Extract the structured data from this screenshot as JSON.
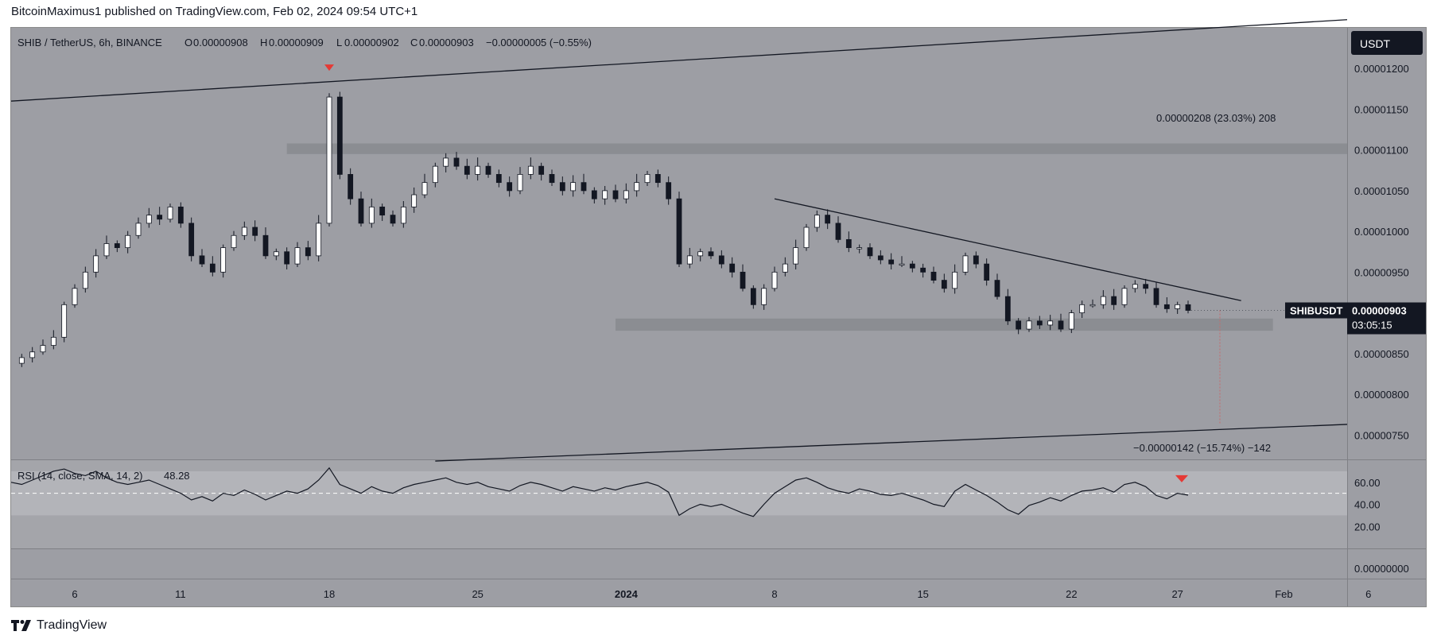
{
  "header": {
    "publisher_text": "BitcoinMaximus1 published on TradingView.com, Feb 02, 2024 09:54 UTC+1"
  },
  "footer": {
    "brand": "TradingView"
  },
  "colors": {
    "pane_bg": "#9d9ea4",
    "axis_bg": "#9d9ea4",
    "bull_candle": "#ffffff",
    "bear_candle": "#131722",
    "marker_red": "#e53935",
    "line": "#131722",
    "zone": "#8a8b90"
  },
  "chart_data": {
    "type": "candlestick",
    "legend": {
      "symbol": "SHIB / TetherUS, 6h, BINANCE",
      "o_label": "O",
      "o_value": "0.00000908",
      "h_label": "H",
      "h_value": "0.00000909",
      "l_label": "L",
      "l_value": "0.00000902",
      "c_label": "C",
      "c_value": "0.00000903",
      "change": "−0.00000005 (−0.55%)"
    },
    "currency_label": "USDT",
    "ylim": [
      7.2e-06,
      1.25e-05
    ],
    "y_ticks": [
      "0.00001200",
      "0.00001150",
      "0.00001100",
      "0.00001050",
      "0.00001000",
      "0.00000950",
      "0.00000900",
      "0.00000850",
      "0.00000800",
      "0.00000750"
    ],
    "y_tick_values": [
      1.2e-05,
      1.15e-05,
      1.1e-05,
      1.05e-05,
      1e-05,
      9.5e-06,
      9e-06,
      8.5e-06,
      8e-06,
      7.5e-06
    ],
    "x_ticks": [
      "6",
      "11",
      "18",
      "25",
      "2024",
      "8",
      "15",
      "22",
      "27",
      "Feb",
      "6"
    ],
    "x_tick_bold": [
      false,
      false,
      false,
      false,
      true,
      false,
      false,
      false,
      false,
      false,
      false
    ],
    "last_price": {
      "symbol": "SHIBUSDT",
      "price": "0.00000903",
      "countdown": "03:05:15",
      "value": 9.03e-06
    },
    "x_range_days": [
      0,
      63
    ],
    "x_tick_days": [
      3,
      8,
      15,
      22,
      29,
      36,
      43,
      50,
      55,
      60,
      64
    ],
    "price_path": [
      [
        0,
        8.38e-06
      ],
      [
        0.5,
        8.45e-06
      ],
      [
        1,
        8.52e-06
      ],
      [
        1.5,
        8.6e-06
      ],
      [
        2,
        8.7e-06
      ],
      [
        2.5,
        9.1e-06
      ],
      [
        3,
        9.3e-06
      ],
      [
        3.5,
        9.5e-06
      ],
      [
        4,
        9.7e-06
      ],
      [
        4.5,
        9.85e-06
      ],
      [
        5,
        9.8e-06
      ],
      [
        5.5,
        9.95e-06
      ],
      [
        6,
        1.01e-05
      ],
      [
        6.5,
        1.02e-05
      ],
      [
        7,
        1.015e-05
      ],
      [
        7.5,
        1.03e-05
      ],
      [
        8,
        1.01e-05
      ],
      [
        8.5,
        9.7e-06
      ],
      [
        9,
        9.6e-06
      ],
      [
        9.5,
        9.5e-06
      ],
      [
        10,
        9.8e-06
      ],
      [
        10.5,
        9.95e-06
      ],
      [
        11,
        1.005e-05
      ],
      [
        11.5,
        9.95e-06
      ],
      [
        12,
        9.7e-06
      ],
      [
        12.5,
        9.75e-06
      ],
      [
        13,
        9.6e-06
      ],
      [
        13.5,
        9.8e-06
      ],
      [
        14,
        9.7e-06
      ],
      [
        14.5,
        1.01e-05
      ],
      [
        15,
        1.165e-05
      ],
      [
        15.5,
        1.07e-05
      ],
      [
        16,
        1.04e-05
      ],
      [
        16.5,
        1.01e-05
      ],
      [
        17,
        1.03e-05
      ],
      [
        17.5,
        1.02e-05
      ],
      [
        18,
        1.01e-05
      ],
      [
        18.5,
        1.03e-05
      ],
      [
        19,
        1.045e-05
      ],
      [
        19.5,
        1.06e-05
      ],
      [
        20,
        1.08e-05
      ],
      [
        20.5,
        1.09e-05
      ],
      [
        21,
        1.08e-05
      ],
      [
        21.5,
        1.07e-05
      ],
      [
        22,
        1.08e-05
      ],
      [
        22.5,
        1.07e-05
      ],
      [
        23,
        1.06e-05
      ],
      [
        23.5,
        1.05e-05
      ],
      [
        24,
        1.07e-05
      ],
      [
        24.5,
        1.08e-05
      ],
      [
        25,
        1.07e-05
      ],
      [
        25.5,
        1.06e-05
      ],
      [
        26,
        1.05e-05
      ],
      [
        26.5,
        1.06e-05
      ],
      [
        27,
        1.05e-05
      ],
      [
        27.5,
        1.04e-05
      ],
      [
        28,
        1.05e-05
      ],
      [
        28.5,
        1.04e-05
      ],
      [
        29,
        1.05e-05
      ],
      [
        29.5,
        1.06e-05
      ],
      [
        30,
        1.07e-05
      ],
      [
        30.5,
        1.06e-05
      ],
      [
        31,
        1.04e-05
      ],
      [
        31.5,
        9.6e-06
      ],
      [
        32,
        9.7e-06
      ],
      [
        32.5,
        9.75e-06
      ],
      [
        33,
        9.7e-06
      ],
      [
        33.5,
        9.6e-06
      ],
      [
        34,
        9.5e-06
      ],
      [
        34.5,
        9.3e-06
      ],
      [
        35,
        9.1e-06
      ],
      [
        35.5,
        9.3e-06
      ],
      [
        36,
        9.5e-06
      ],
      [
        36.5,
        9.6e-06
      ],
      [
        37,
        9.8e-06
      ],
      [
        37.5,
        1.005e-05
      ],
      [
        38,
        1.02e-05
      ],
      [
        38.5,
        1.01e-05
      ],
      [
        39,
        9.9e-06
      ],
      [
        39.5,
        9.8e-06
      ],
      [
        40,
        9.8e-06
      ],
      [
        40.5,
        9.7e-06
      ],
      [
        41,
        9.65e-06
      ],
      [
        41.5,
        9.6e-06
      ],
      [
        42,
        9.6e-06
      ],
      [
        42.5,
        9.55e-06
      ],
      [
        43,
        9.5e-06
      ],
      [
        43.5,
        9.4e-06
      ],
      [
        44,
        9.3e-06
      ],
      [
        44.5,
        9.5e-06
      ],
      [
        45,
        9.7e-06
      ],
      [
        45.5,
        9.6e-06
      ],
      [
        46,
        9.4e-06
      ],
      [
        46.5,
        9.2e-06
      ],
      [
        47,
        8.9e-06
      ],
      [
        47.5,
        8.8e-06
      ],
      [
        48,
        8.9e-06
      ],
      [
        48.5,
        8.85e-06
      ],
      [
        49,
        8.9e-06
      ],
      [
        49.5,
        8.8e-06
      ],
      [
        50,
        9e-06
      ],
      [
        50.5,
        9.1e-06
      ],
      [
        51,
        9.1e-06
      ],
      [
        51.5,
        9.2e-06
      ],
      [
        52,
        9.1e-06
      ],
      [
        52.5,
        9.3e-06
      ],
      [
        53,
        9.35e-06
      ],
      [
        53.5,
        9.3e-06
      ],
      [
        54,
        9.1e-06
      ],
      [
        54.5,
        9.05e-06
      ],
      [
        55,
        9.1e-06
      ],
      [
        55.5,
        9.03e-06
      ]
    ],
    "annotations": {
      "measure_up": "0.00000208 (23.03%) 208",
      "measure_down": "−0.00000142 (−15.74%) −142",
      "upper_channel": {
        "start": [
          0,
          1.16e-05
        ],
        "end": [
          63,
          1.26e-05
        ]
      },
      "lower_channel": {
        "start": [
          20,
          7.18e-06
        ],
        "end": [
          63,
          7.63e-06
        ]
      },
      "descending_line": {
        "start": [
          36,
          1.04e-05
        ],
        "end": [
          58,
          9.15e-06
        ]
      },
      "resistance_zone": {
        "from_day": 13,
        "to_day": 63,
        "low": 1.095e-05,
        "high": 1.108e-05
      },
      "support_zone": {
        "from_day": 28.5,
        "to_day": 59.5,
        "low": 8.78e-06,
        "high": 8.93e-06
      },
      "projection_day": 57
    },
    "rsi": {
      "label": "RSI (14, close, SMA, 14, 2)",
      "value": "48.28",
      "ylim": [
        0,
        80
      ],
      "ticks": [
        "60.00",
        "40.00",
        "20.00"
      ],
      "tick_values": [
        60,
        40,
        20
      ],
      "band": [
        30,
        70
      ],
      "midline": 50,
      "points": [
        [
          0,
          60
        ],
        [
          0.5,
          58
        ],
        [
          1,
          62
        ],
        [
          1.5,
          66
        ],
        [
          2,
          70
        ],
        [
          2.5,
          72
        ],
        [
          3,
          68
        ],
        [
          3.5,
          66
        ],
        [
          4,
          70
        ],
        [
          4.5,
          64
        ],
        [
          5,
          60
        ],
        [
          5.5,
          58
        ],
        [
          6,
          60
        ],
        [
          6.5,
          62
        ],
        [
          7,
          58
        ],
        [
          7.5,
          54
        ],
        [
          8,
          50
        ],
        [
          8.5,
          44
        ],
        [
          9,
          47
        ],
        [
          9.5,
          43
        ],
        [
          10,
          50
        ],
        [
          10.5,
          48
        ],
        [
          11,
          53
        ],
        [
          11.5,
          49
        ],
        [
          12,
          44
        ],
        [
          12.5,
          48
        ],
        [
          13,
          52
        ],
        [
          13.5,
          50
        ],
        [
          14,
          54
        ],
        [
          14.5,
          62
        ],
        [
          15,
          73
        ],
        [
          15.5,
          58
        ],
        [
          16,
          54
        ],
        [
          16.5,
          50
        ],
        [
          17,
          56
        ],
        [
          17.5,
          52
        ],
        [
          18,
          50
        ],
        [
          18.5,
          55
        ],
        [
          19,
          58
        ],
        [
          19.5,
          60
        ],
        [
          20,
          62
        ],
        [
          20.5,
          64
        ],
        [
          21,
          60
        ],
        [
          21.5,
          58
        ],
        [
          22,
          60
        ],
        [
          22.5,
          56
        ],
        [
          23,
          54
        ],
        [
          23.5,
          52
        ],
        [
          24,
          57
        ],
        [
          24.5,
          60
        ],
        [
          25,
          58
        ],
        [
          25.5,
          55
        ],
        [
          26,
          52
        ],
        [
          26.5,
          56
        ],
        [
          27,
          54
        ],
        [
          27.5,
          52
        ],
        [
          28,
          55
        ],
        [
          28.5,
          53
        ],
        [
          29,
          56
        ],
        [
          29.5,
          58
        ],
        [
          30,
          60
        ],
        [
          30.5,
          57
        ],
        [
          31,
          51
        ],
        [
          31.5,
          30
        ],
        [
          32,
          36
        ],
        [
          32.5,
          40
        ],
        [
          33,
          38
        ],
        [
          33.5,
          40
        ],
        [
          34,
          36
        ],
        [
          34.5,
          32
        ],
        [
          35,
          29
        ],
        [
          35.5,
          40
        ],
        [
          36,
          50
        ],
        [
          36.5,
          56
        ],
        [
          37,
          62
        ],
        [
          37.5,
          64
        ],
        [
          38,
          60
        ],
        [
          38.5,
          55
        ],
        [
          39,
          52
        ],
        [
          39.5,
          50
        ],
        [
          40,
          54
        ],
        [
          40.5,
          52
        ],
        [
          41,
          49
        ],
        [
          41.5,
          48
        ],
        [
          42,
          50
        ],
        [
          42.5,
          47
        ],
        [
          43,
          44
        ],
        [
          43.5,
          40
        ],
        [
          44,
          38
        ],
        [
          44.5,
          52
        ],
        [
          45,
          58
        ],
        [
          45.5,
          53
        ],
        [
          46,
          48
        ],
        [
          46.5,
          42
        ],
        [
          47,
          35
        ],
        [
          47.5,
          31
        ],
        [
          48,
          39
        ],
        [
          48.5,
          42
        ],
        [
          49,
          46
        ],
        [
          49.5,
          43
        ],
        [
          50,
          48
        ],
        [
          50.5,
          52
        ],
        [
          51,
          53
        ],
        [
          51.5,
          55
        ],
        [
          52,
          51
        ],
        [
          52.5,
          58
        ],
        [
          53,
          60
        ],
        [
          53.5,
          56
        ],
        [
          54,
          48
        ],
        [
          54.5,
          45
        ],
        [
          55,
          50
        ],
        [
          55.5,
          48.28
        ]
      ],
      "marker_day": 55.2
    },
    "bottom_pane": {
      "tick": "0.00000000"
    }
  }
}
